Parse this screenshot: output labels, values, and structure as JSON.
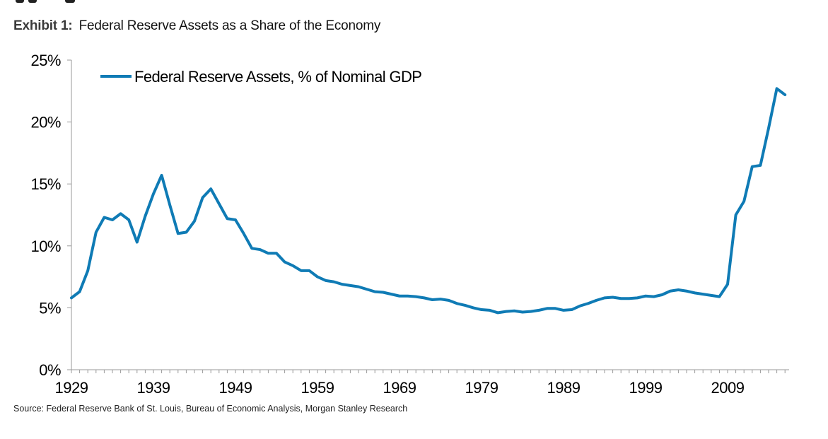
{
  "exhibit": {
    "label": "Exhibit 1:",
    "title": "Federal Reserve Assets as a Share of the Economy"
  },
  "source": "Source: Federal Reserve Bank of St. Louis, Bureau of Economic Analysis, Morgan Stanley Research",
  "chart_data": {
    "type": "line",
    "title": "Federal Reserve Assets as a Share of the Economy",
    "xlabel": "",
    "ylabel": "",
    "xlim": [
      1929,
      2016.5
    ],
    "ylim": [
      0,
      25
    ],
    "grid": false,
    "legend_position": "top-left",
    "x_ticks": [
      1929,
      1939,
      1949,
      1959,
      1969,
      1979,
      1989,
      1999,
      2009
    ],
    "x_tick_labels": [
      "1929",
      "1939",
      "1949",
      "1959",
      "1969",
      "1979",
      "1989",
      "1999",
      "2009"
    ],
    "y_ticks": [
      0,
      5,
      10,
      15,
      20,
      25
    ],
    "y_tick_labels": [
      "0%",
      "5%",
      "10%",
      "15%",
      "20%",
      "25%"
    ],
    "series": [
      {
        "name": "Federal Reserve Assets, % of Nominal GDP",
        "color": "#0f7bb5",
        "x": [
          1929,
          1930,
          1931,
          1932,
          1933,
          1934,
          1935,
          1936,
          1937,
          1938,
          1939,
          1940,
          1941,
          1942,
          1943,
          1944,
          1945,
          1946,
          1947,
          1948,
          1949,
          1950,
          1951,
          1952,
          1953,
          1954,
          1955,
          1956,
          1957,
          1958,
          1959,
          1960,
          1961,
          1962,
          1963,
          1964,
          1965,
          1966,
          1967,
          1968,
          1969,
          1970,
          1971,
          1972,
          1973,
          1974,
          1975,
          1976,
          1977,
          1978,
          1979,
          1980,
          1981,
          1982,
          1983,
          1984,
          1985,
          1986,
          1987,
          1988,
          1989,
          1990,
          1991,
          1992,
          1993,
          1994,
          1995,
          1996,
          1997,
          1998,
          1999,
          2000,
          2001,
          2002,
          2003,
          2004,
          2005,
          2006,
          2007,
          2008,
          2009,
          2010,
          2011,
          2012,
          2013,
          2014,
          2015,
          2016
        ],
        "values": [
          5.8,
          6.3,
          8.0,
          11.1,
          12.3,
          12.1,
          12.6,
          12.1,
          10.3,
          12.4,
          14.2,
          15.7,
          13.3,
          11.0,
          11.1,
          12.0,
          13.9,
          14.6,
          13.4,
          12.2,
          12.1,
          11.0,
          9.8,
          9.7,
          9.4,
          9.4,
          8.7,
          8.4,
          8.0,
          8.0,
          7.5,
          7.2,
          7.1,
          6.9,
          6.8,
          6.7,
          6.5,
          6.3,
          6.25,
          6.1,
          5.95,
          5.95,
          5.9,
          5.8,
          5.65,
          5.7,
          5.6,
          5.35,
          5.2,
          5.0,
          4.85,
          4.8,
          4.6,
          4.7,
          4.75,
          4.65,
          4.7,
          4.8,
          4.95,
          4.95,
          4.8,
          4.85,
          5.15,
          5.35,
          5.6,
          5.8,
          5.85,
          5.75,
          5.75,
          5.8,
          5.95,
          5.9,
          6.05,
          6.35,
          6.45,
          6.35,
          6.2,
          6.1,
          6.0,
          5.9,
          6.9,
          12.5,
          13.6,
          16.4,
          16.5,
          19.5,
          22.7,
          22.2
        ]
      }
    ]
  }
}
